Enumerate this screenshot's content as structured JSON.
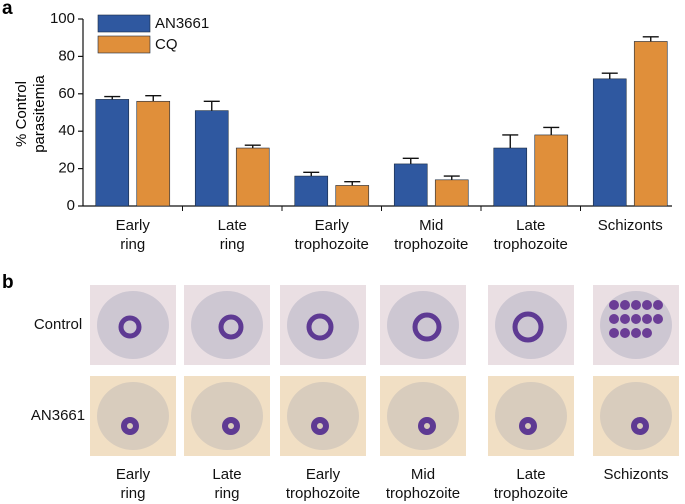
{
  "chart_data": {
    "type": "bar",
    "y_label": "% Control\nparasitemia",
    "categories": [
      "Early\nring",
      "Late\nring",
      "Early\ntrophozoite",
      "Mid\ntrophozoite",
      "Late\ntrophozoite",
      "Schizonts"
    ],
    "series": [
      {
        "name": "AN3661",
        "color": "#2f58a0",
        "values": [
          57,
          51,
          16,
          22.5,
          31,
          68
        ],
        "errors": [
          1.5,
          5,
          2,
          3,
          7,
          3
        ]
      },
      {
        "name": "CQ",
        "color": "#e08f3a",
        "values": [
          56,
          31,
          11,
          14,
          38,
          88
        ],
        "errors": [
          3,
          1.5,
          2,
          2,
          4,
          2.5
        ]
      }
    ],
    "ylim": [
      0,
      100
    ],
    "yticks": [
      0,
      20,
      40,
      60,
      80,
      100
    ],
    "legend": "upper-left"
  },
  "panels": {
    "a": "a",
    "b": "b"
  },
  "micrographs": {
    "row_labels": [
      "Control",
      "AN3661"
    ],
    "column_labels": [
      "Early\nring",
      "Late\nring",
      "Early\ntrophozoite",
      "Mid\ntrophozoite",
      "Late\ntrophozoite",
      "Schizonts"
    ]
  }
}
